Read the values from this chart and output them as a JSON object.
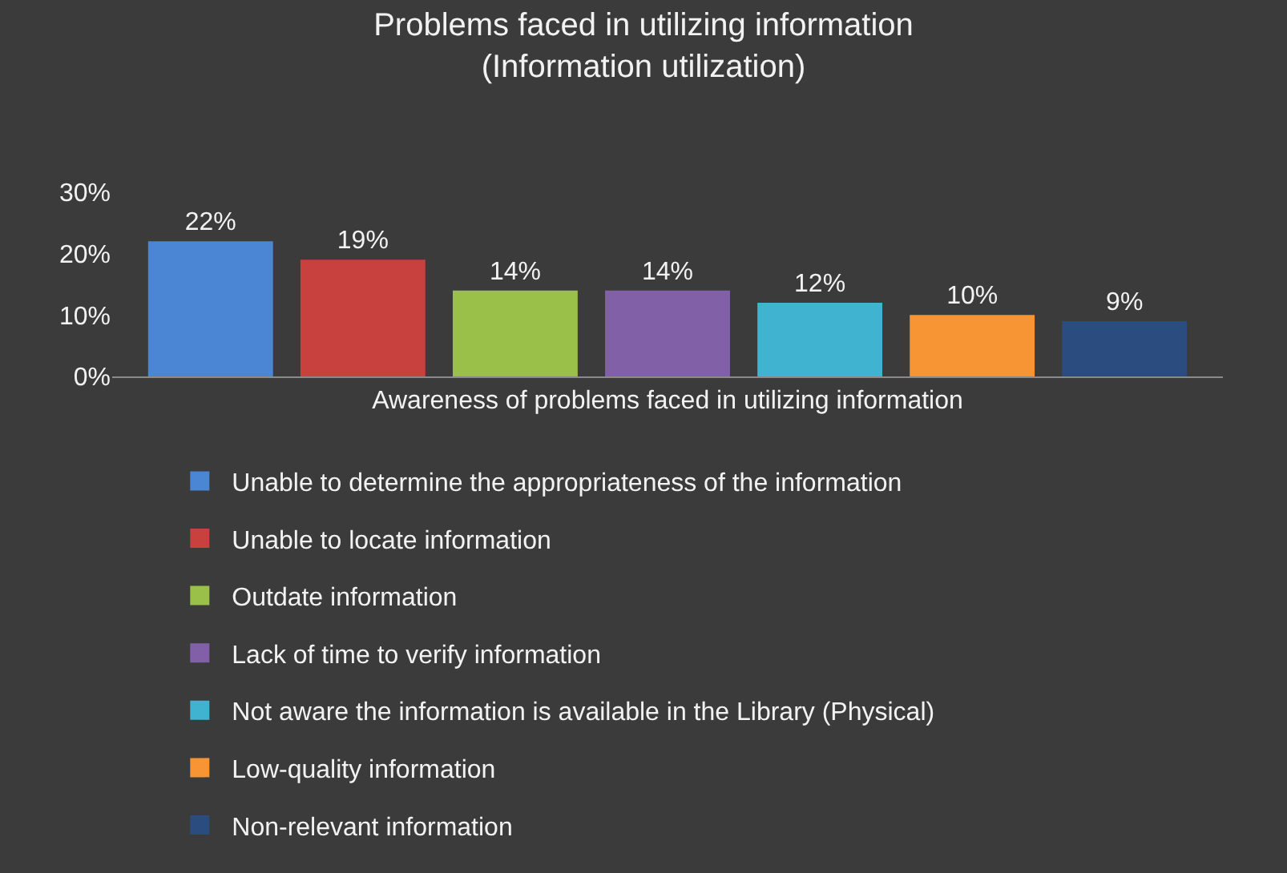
{
  "chart_data": {
    "type": "bar",
    "title": "Problems faced in utilizing information\n(Information utilization)",
    "categories": [
      "Awareness of problems faced in utilizing information"
    ],
    "series": [
      {
        "name": "Unable to determine the appropriateness of the information",
        "color": "#4a86d4",
        "values": [
          22
        ],
        "value_labels": [
          "22%"
        ]
      },
      {
        "name": "Unable to locate information",
        "color": "#c8413e",
        "values": [
          19
        ],
        "value_labels": [
          "19%"
        ]
      },
      {
        "name": "Outdate information",
        "color": "#9bc049",
        "values": [
          14
        ],
        "value_labels": [
          "14%"
        ]
      },
      {
        "name": "Lack of time to verify information",
        "color": "#8260a8",
        "values": [
          14
        ],
        "value_labels": [
          "14%"
        ]
      },
      {
        "name": "Not aware the information is available in the Library (Physical)",
        "color": "#3fb3cf",
        "values": [
          12
        ],
        "value_labels": [
          "12%"
        ]
      },
      {
        "name": "Low-quality information",
        "color": "#f79433",
        "values": [
          10
        ],
        "value_labels": [
          "10%"
        ]
      },
      {
        "name": "Non-relevant information",
        "color": "#2b4c7e",
        "values": [
          9
        ],
        "value_labels": [
          "9%"
        ]
      }
    ],
    "ylim": [
      0,
      30
    ],
    "yticks": [
      {
        "value": 0,
        "label": "0%"
      },
      {
        "value": 10,
        "label": "10%"
      },
      {
        "value": 20,
        "label": "20%"
      },
      {
        "value": 30,
        "label": "30%"
      }
    ],
    "grid": false,
    "legend": "bottom"
  }
}
